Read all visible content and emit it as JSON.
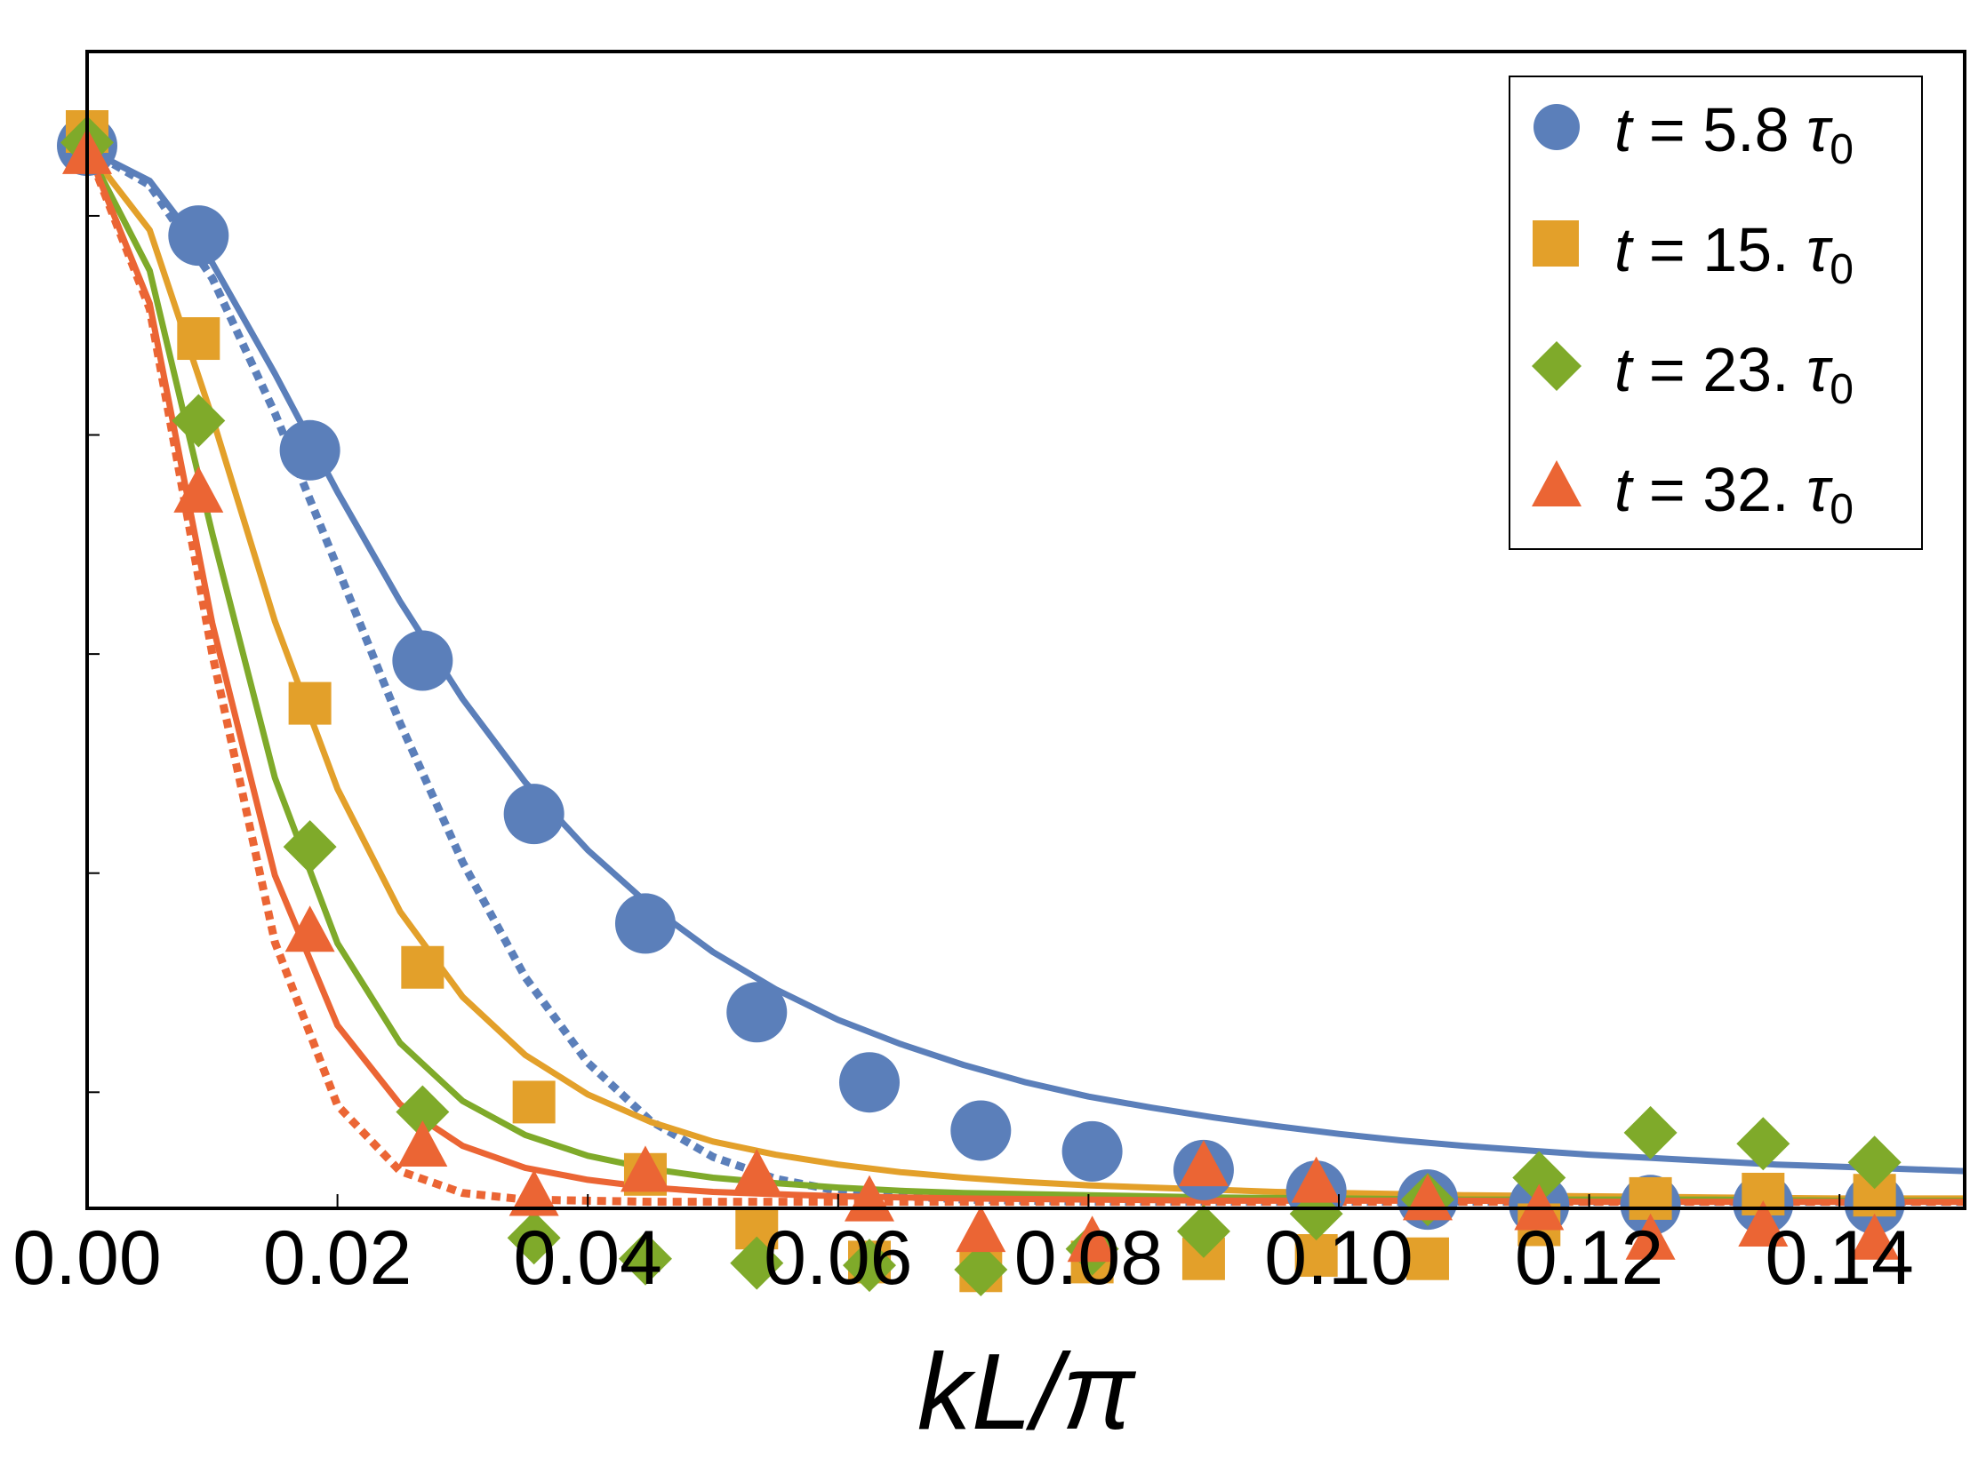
{
  "chart_data": {
    "type": "scatter",
    "title": "",
    "xlabel": "kL/π",
    "ylabel": "",
    "xlim": [
      0,
      0.15
    ],
    "ylim": [
      -0.006,
      1.05
    ],
    "xticks": [
      "0.00",
      "0.02",
      "0.04",
      "0.06",
      "0.08",
      "0.10",
      "0.12",
      "0.14"
    ],
    "xtick_values": [
      0,
      0.02,
      0.04,
      0.06,
      0.08,
      0.1,
      0.12,
      0.14
    ],
    "ytick_values": [
      0.1,
      0.3,
      0.5,
      0.7,
      0.9
    ],
    "legend_position": "top-right",
    "series": [
      {
        "name": "t = 5.8 τ0",
        "legend": {
          "pre": "t",
          "mid": " = 5.8 ",
          "tau": "τ",
          "sub": "0"
        },
        "color": "#5B7FBA",
        "marker": "circle",
        "x": [
          0,
          0.0089,
          0.0178,
          0.0268,
          0.0357,
          0.0446,
          0.0535,
          0.0625,
          0.0714,
          0.0803,
          0.0892,
          0.0982,
          0.1071,
          0.116,
          0.1249,
          0.1339,
          0.1428
        ],
        "y": [
          0.964,
          0.882,
          0.686,
          0.494,
          0.354,
          0.254,
          0.173,
          0.109,
          0.065,
          0.046,
          0.029,
          0.01,
          0.002,
          -0.003,
          -0.003,
          -0.002,
          -0.002
        ]
      },
      {
        "name": "t = 15. τ0",
        "legend": {
          "pre": "t",
          "mid": " = 15. ",
          "tau": "τ",
          "sub": "0"
        },
        "color": "#E3A02A",
        "marker": "square",
        "x": [
          0,
          0.0089,
          0.0178,
          0.0268,
          0.0357,
          0.0446,
          0.0535,
          0.0625,
          0.0714,
          0.0803,
          0.0892,
          0.0982,
          0.1071,
          0.116,
          0.1249,
          0.1339,
          0.1428
        ],
        "y": [
          0.977,
          0.788,
          0.455,
          0.214,
          0.091,
          0.025,
          -0.024,
          -0.055,
          -0.063,
          -0.055,
          -0.052,
          -0.049,
          -0.052,
          -0.021,
          0.003,
          0.007,
          0.006
        ]
      },
      {
        "name": "t = 23. τ0",
        "legend": {
          "pre": "t",
          "mid": " = 23. ",
          "tau": "τ",
          "sub": "0"
        },
        "color": "#7FAA2A",
        "marker": "diamond",
        "x": [
          0,
          0.0089,
          0.0178,
          0.0268,
          0.0357,
          0.0446,
          0.0535,
          0.0625,
          0.0714,
          0.0803,
          0.0892,
          0.0982,
          0.1071,
          0.116,
          0.1249,
          0.1339,
          0.1428
        ],
        "y": [
          0.967,
          0.713,
          0.324,
          0.082,
          -0.033,
          -0.052,
          -0.056,
          -0.058,
          -0.062,
          -0.043,
          -0.027,
          -0.011,
          0.002,
          0.022,
          0.063,
          0.053,
          0.036
        ]
      },
      {
        "name": "t = 32. τ0",
        "legend": {
          "pre": "t",
          "mid": " = 32. ",
          "tau": "τ",
          "sub": "0"
        },
        "color": "#EB6534",
        "marker": "triangle",
        "x": [
          0,
          0.0089,
          0.0178,
          0.0268,
          0.0357,
          0.0446,
          0.0535,
          0.0625,
          0.0714,
          0.0803,
          0.0892,
          0.0982,
          0.1071,
          0.116,
          0.1249,
          0.1339,
          0.1428
        ],
        "y": [
          0.956,
          0.647,
          0.246,
          0.05,
          0.005,
          0.027,
          0.024,
          0.0,
          -0.028,
          -0.037,
          0.032,
          0.017,
          0.001,
          -0.008,
          -0.035,
          -0.023,
          -0.035
        ]
      }
    ],
    "curves": [
      {
        "name": "t = 5.8 τ0 solid",
        "color": "#5B7FBA",
        "style": "solid",
        "x": [
          0,
          0.005,
          0.01,
          0.015,
          0.02,
          0.025,
          0.03,
          0.035,
          0.04,
          0.045,
          0.05,
          0.055,
          0.06,
          0.065,
          0.07,
          0.075,
          0.08,
          0.085,
          0.09,
          0.095,
          0.1,
          0.105,
          0.11,
          0.115,
          0.12,
          0.125,
          0.13,
          0.135,
          0.14,
          0.145,
          0.15
        ],
        "y": [
          0.961,
          0.932,
          0.857,
          0.756,
          0.648,
          0.548,
          0.459,
          0.383,
          0.321,
          0.27,
          0.228,
          0.194,
          0.166,
          0.144,
          0.125,
          0.109,
          0.096,
          0.086,
          0.077,
          0.069,
          0.062,
          0.056,
          0.051,
          0.047,
          0.043,
          0.04,
          0.037,
          0.034,
          0.032,
          0.03,
          0.028
        ]
      },
      {
        "name": "t = 5.8 τ0 dotted",
        "color": "#5B7FBA",
        "style": "dotted",
        "x": [
          0,
          0.005,
          0.01,
          0.015,
          0.02,
          0.025,
          0.03,
          0.035,
          0.04,
          0.045,
          0.05,
          0.055,
          0.06,
          0.065,
          0.07,
          0.075,
          0.08,
          0.085,
          0.09,
          0.095,
          0.1,
          0.105,
          0.11,
          0.115,
          0.12,
          0.125,
          0.13,
          0.135,
          0.14,
          0.145,
          0.15
        ],
        "y": [
          0.961,
          0.928,
          0.843,
          0.72,
          0.579,
          0.437,
          0.31,
          0.205,
          0.127,
          0.074,
          0.041,
          0.021,
          0.01,
          0.005,
          0.002,
          0.001,
          0.0,
          0.0,
          0.0,
          0.0,
          0.0,
          0.0,
          0.0,
          0.0,
          0.0,
          0.0,
          0.0,
          0.0,
          0.0,
          0.0,
          0.0
        ]
      },
      {
        "name": "t = 15. τ0 solid",
        "color": "#E3A02A",
        "style": "solid",
        "x": [
          0,
          0.005,
          0.01,
          0.015,
          0.02,
          0.025,
          0.03,
          0.035,
          0.04,
          0.045,
          0.05,
          0.055,
          0.06,
          0.065,
          0.07,
          0.075,
          0.08,
          0.085,
          0.09,
          0.095,
          0.1,
          0.11,
          0.12,
          0.13,
          0.14,
          0.15
        ],
        "y": [
          0.961,
          0.887,
          0.716,
          0.53,
          0.377,
          0.265,
          0.187,
          0.134,
          0.098,
          0.073,
          0.055,
          0.043,
          0.034,
          0.027,
          0.022,
          0.018,
          0.015,
          0.013,
          0.011,
          0.009,
          0.008,
          0.006,
          0.005,
          0.004,
          0.003,
          0.003
        ]
      },
      {
        "name": "t = 23. τ0 solid",
        "color": "#7FAA2A",
        "style": "solid",
        "x": [
          0,
          0.005,
          0.01,
          0.015,
          0.02,
          0.025,
          0.03,
          0.035,
          0.04,
          0.045,
          0.05,
          0.055,
          0.06,
          0.065,
          0.07,
          0.08,
          0.09,
          0.1,
          0.11,
          0.12,
          0.13,
          0.14,
          0.15
        ],
        "y": [
          0.961,
          0.85,
          0.61,
          0.387,
          0.236,
          0.145,
          0.092,
          0.061,
          0.042,
          0.03,
          0.022,
          0.017,
          0.013,
          0.01,
          0.008,
          0.006,
          0.004,
          0.003,
          0.002,
          0.002,
          0.002,
          0.001,
          0.001
        ]
      },
      {
        "name": "t = 32. τ0 solid",
        "color": "#EB6534",
        "style": "solid",
        "x": [
          0,
          0.005,
          0.01,
          0.015,
          0.02,
          0.025,
          0.03,
          0.035,
          0.04,
          0.045,
          0.05,
          0.055,
          0.06,
          0.07,
          0.08,
          0.09,
          0.1,
          0.11,
          0.12,
          0.13,
          0.14,
          0.15
        ],
        "y": [
          0.961,
          0.82,
          0.528,
          0.298,
          0.161,
          0.089,
          0.051,
          0.031,
          0.02,
          0.013,
          0.009,
          0.007,
          0.005,
          0.003,
          0.002,
          0.001,
          0.001,
          0.001,
          0.0,
          0.0,
          0.0,
          0.0
        ]
      },
      {
        "name": "t = 32. τ0 dotted",
        "color": "#EB6534",
        "style": "dotted",
        "x": [
          0,
          0.005,
          0.01,
          0.015,
          0.02,
          0.025,
          0.03,
          0.035,
          0.04,
          0.045,
          0.05,
          0.06,
          0.08,
          0.1,
          0.12,
          0.15
        ],
        "y": [
          0.961,
          0.815,
          0.5,
          0.237,
          0.088,
          0.028,
          0.008,
          0.002,
          0.001,
          0.0,
          0.0,
          0.0,
          0.0,
          0.0,
          0.0,
          0.0
        ]
      }
    ]
  }
}
